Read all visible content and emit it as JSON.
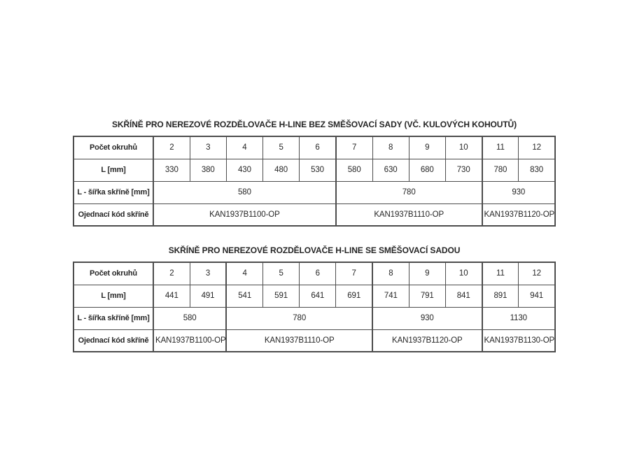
{
  "page": {
    "background": "#ffffff"
  },
  "style": {
    "border_color": "#4d4d4d",
    "text_color": "#262626"
  },
  "tables": [
    {
      "title": "SKŘÍNĚ PRO NEREZOVÉ ROZDĚLOVAČE H-LINE BEZ SMĚŠOVACÍ SADY (VČ. KULOVÝCH KOHOUTŮ)",
      "rows": [
        {
          "label": "Počet okruhů",
          "cells": [
            "2",
            "3",
            "4",
            "5",
            "6",
            "7",
            "8",
            "9",
            "10",
            "11",
            "12"
          ]
        },
        {
          "label": "L [mm]",
          "cells": [
            "330",
            "380",
            "430",
            "480",
            "530",
            "580",
            "630",
            "680",
            "730",
            "780",
            "830"
          ]
        },
        {
          "label": "L - šířka skříně [mm]",
          "cells": [
            {
              "text": "580",
              "span": 5
            },
            {
              "text": "780",
              "span": 4
            },
            {
              "text": "930",
              "span": 2
            }
          ]
        },
        {
          "label": "Ojednací kód skříně",
          "cells": [
            {
              "text": "KAN1937B1100-OP",
              "span": 5
            },
            {
              "text": "KAN1937B1110-OP",
              "span": 4
            },
            {
              "text": "KAN1937B1120-OP",
              "span": 2
            }
          ]
        }
      ]
    },
    {
      "title": "SKŘÍNĚ PRO NEREZOVÉ ROZDĚLOVAČE H-LINE SE SMĚŠOVACÍ SADOU",
      "rows": [
        {
          "label": "Počet okruhů",
          "cells": [
            "2",
            "3",
            "4",
            "5",
            "6",
            "7",
            "8",
            "9",
            "10",
            "11",
            "12"
          ]
        },
        {
          "label": "L [mm]",
          "cells": [
            "441",
            "491",
            "541",
            "591",
            "641",
            "691",
            "741",
            "791",
            "841",
            "891",
            "941"
          ]
        },
        {
          "label": "L - šířka skříně [mm]",
          "cells": [
            {
              "text": "580",
              "span": 2
            },
            {
              "text": "780",
              "span": 4
            },
            {
              "text": "930",
              "span": 3
            },
            {
              "text": "1130",
              "span": 2
            }
          ]
        },
        {
          "label": "Ojednací kód skříně",
          "cells": [
            {
              "text": "KAN1937B1100-OP",
              "span": 2
            },
            {
              "text": "KAN1937B1110-OP",
              "span": 4
            },
            {
              "text": "KAN1937B1120-OP",
              "span": 3
            },
            {
              "text": "KAN1937B1130-OP",
              "span": 2
            }
          ]
        }
      ]
    }
  ]
}
